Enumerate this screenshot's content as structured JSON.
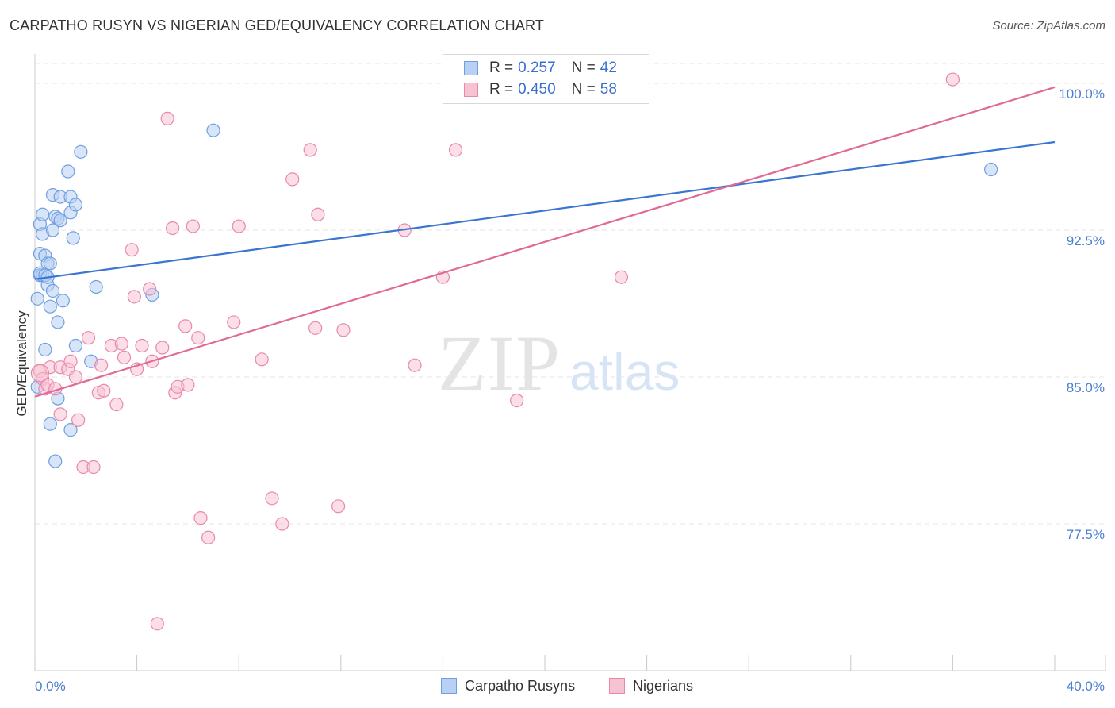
{
  "title": "CARPATHO RUSYN VS NIGERIAN GED/EQUIVALENCY CORRELATION CHART",
  "source": "Source: ZipAtlas.com",
  "watermark": {
    "zip": "ZIP",
    "atlas": "atlas"
  },
  "colors": {
    "blue": "#6f9fe0",
    "blue_fill": "#b8d0f3",
    "blue_line": "#3a75d0",
    "pink": "#e889a8",
    "pink_fill": "#f7c3d3",
    "pink_line": "#e06a95",
    "grid": "#e6e6e6",
    "tick_text": "#4a7fd0"
  },
  "legend": {
    "rows": [
      {
        "r_label": "R =",
        "r_value": "0.257",
        "n_label": "N =",
        "n_value": "42"
      },
      {
        "r_label": "R =",
        "r_value": "0.450",
        "n_label": "N =",
        "n_value": "58"
      }
    ]
  },
  "chart_data": {
    "type": "scatter",
    "ylabel": "GED/Equivalency",
    "xlabel": "",
    "xlim": [
      0,
      40
    ],
    "ylim": [
      70.0,
      101.5
    ],
    "x_tick_labels": [
      "0.0%",
      "40.0%"
    ],
    "y_ticks": [
      77.5,
      85.0,
      92.5,
      100.0
    ],
    "y_tick_labels": [
      "77.5%",
      "85.0%",
      "92.5%",
      "100.0%"
    ],
    "grid": true,
    "legend_position": "top-center",
    "series": [
      {
        "name": "Carpatho Rusyns",
        "trendline": {
          "x": [
            0,
            40
          ],
          "y": [
            90.0,
            97.0
          ]
        },
        "points": [
          [
            0.1,
            84.5
          ],
          [
            0.1,
            89.0
          ],
          [
            0.2,
            90.2
          ],
          [
            0.2,
            91.3
          ],
          [
            0.2,
            92.8
          ],
          [
            0.3,
            93.3
          ],
          [
            0.3,
            92.3
          ],
          [
            0.3,
            90.2
          ],
          [
            0.4,
            91.2
          ],
          [
            0.4,
            86.4
          ],
          [
            0.5,
            90.8
          ],
          [
            0.5,
            89.7
          ],
          [
            0.6,
            88.6
          ],
          [
            0.6,
            90.8
          ],
          [
            0.7,
            94.3
          ],
          [
            0.7,
            92.5
          ],
          [
            0.7,
            89.4
          ],
          [
            0.8,
            93.2
          ],
          [
            0.8,
            80.7
          ],
          [
            0.9,
            83.9
          ],
          [
            0.9,
            87.8
          ],
          [
            0.9,
            93.1
          ],
          [
            1.0,
            93.0
          ],
          [
            1.0,
            94.2
          ],
          [
            1.1,
            88.9
          ],
          [
            1.3,
            95.5
          ],
          [
            1.4,
            94.2
          ],
          [
            1.4,
            93.4
          ],
          [
            1.5,
            92.1
          ],
          [
            1.6,
            93.8
          ],
          [
            1.6,
            86.6
          ],
          [
            1.8,
            96.5
          ],
          [
            2.2,
            85.8
          ],
          [
            2.4,
            89.6
          ],
          [
            4.6,
            89.2
          ],
          [
            7.0,
            97.6
          ],
          [
            37.5,
            95.6
          ],
          [
            0.6,
            82.6
          ],
          [
            1.4,
            82.3
          ],
          [
            0.2,
            90.3
          ],
          [
            0.4,
            90.2
          ],
          [
            0.5,
            90.1
          ]
        ]
      },
      {
        "name": "Nigerians",
        "trendline": {
          "x": [
            0,
            40
          ],
          "y": [
            84.0,
            99.8
          ]
        },
        "points": [
          [
            0.2,
            85.3
          ],
          [
            0.3,
            84.9
          ],
          [
            0.4,
            84.4
          ],
          [
            0.5,
            84.6
          ],
          [
            0.6,
            85.5
          ],
          [
            0.8,
            84.4
          ],
          [
            1.0,
            83.1
          ],
          [
            1.0,
            85.5
          ],
          [
            1.3,
            85.4
          ],
          [
            1.4,
            85.8
          ],
          [
            1.6,
            85.0
          ],
          [
            1.7,
            82.8
          ],
          [
            1.9,
            80.4
          ],
          [
            2.1,
            87.0
          ],
          [
            2.3,
            80.4
          ],
          [
            2.5,
            84.2
          ],
          [
            2.6,
            85.6
          ],
          [
            2.7,
            84.3
          ],
          [
            3.0,
            86.6
          ],
          [
            3.2,
            83.6
          ],
          [
            3.4,
            86.7
          ],
          [
            3.5,
            86.0
          ],
          [
            3.8,
            91.5
          ],
          [
            3.9,
            89.1
          ],
          [
            4.0,
            85.4
          ],
          [
            4.2,
            86.6
          ],
          [
            4.5,
            89.5
          ],
          [
            4.6,
            85.8
          ],
          [
            4.8,
            72.4
          ],
          [
            5.0,
            86.5
          ],
          [
            5.2,
            98.2
          ],
          [
            5.4,
            92.6
          ],
          [
            5.5,
            84.2
          ],
          [
            5.6,
            84.5
          ],
          [
            5.9,
            87.6
          ],
          [
            6.0,
            84.6
          ],
          [
            6.2,
            92.7
          ],
          [
            6.4,
            87.0
          ],
          [
            6.5,
            77.8
          ],
          [
            6.8,
            76.8
          ],
          [
            7.8,
            87.8
          ],
          [
            8.0,
            92.7
          ],
          [
            8.9,
            85.9
          ],
          [
            9.3,
            78.8
          ],
          [
            9.7,
            77.5
          ],
          [
            10.1,
            95.1
          ],
          [
            10.8,
            96.6
          ],
          [
            11.0,
            87.5
          ],
          [
            11.1,
            93.3
          ],
          [
            11.9,
            78.4
          ],
          [
            12.1,
            87.4
          ],
          [
            14.5,
            92.5
          ],
          [
            14.9,
            85.6
          ],
          [
            16.0,
            90.1
          ],
          [
            16.5,
            96.6
          ],
          [
            18.9,
            83.8
          ],
          [
            23.0,
            90.1
          ],
          [
            36.0,
            100.2
          ]
        ]
      }
    ]
  }
}
